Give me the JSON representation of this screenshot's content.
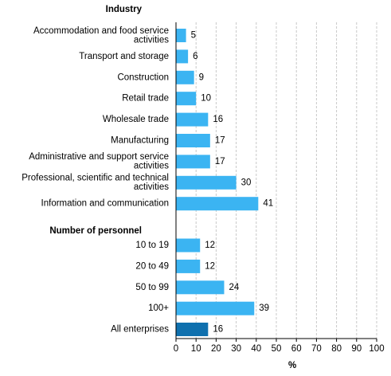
{
  "chart_data": {
    "type": "bar",
    "orientation": "horizontal",
    "xlabel": "%",
    "xlim": [
      0,
      100
    ],
    "x_ticks": [
      0,
      10,
      20,
      30,
      40,
      50,
      60,
      70,
      80,
      90,
      100
    ],
    "grid": true,
    "colors": {
      "bar": "#3BB4F2",
      "total_bar": "#0F70AE",
      "grid": "#C8C8C8",
      "axis": "#000000"
    },
    "groups": [
      {
        "heading": "Industry",
        "categories": [
          [
            "Accommodation and food service",
            "activities"
          ],
          [
            "Transport and storage"
          ],
          [
            "Construction"
          ],
          [
            "Retail trade"
          ],
          [
            "Wholesale trade"
          ],
          [
            "Manufacturing"
          ],
          [
            "Administrative and support service",
            "activities"
          ],
          [
            "Professional, scientific and technical",
            "activities"
          ],
          [
            "Information and communication"
          ]
        ],
        "values": [
          5,
          6,
          9,
          10,
          16,
          17,
          17,
          30,
          41
        ]
      },
      {
        "heading": "Number of personnel",
        "categories": [
          [
            "10 to 19"
          ],
          [
            "20 to 49"
          ],
          [
            "50 to 99"
          ],
          [
            "100+"
          ]
        ],
        "values": [
          12,
          12,
          24,
          39
        ]
      },
      {
        "heading": "",
        "categories": [
          [
            "All enterprises"
          ]
        ],
        "values": [
          16
        ],
        "highlight": true
      }
    ]
  }
}
